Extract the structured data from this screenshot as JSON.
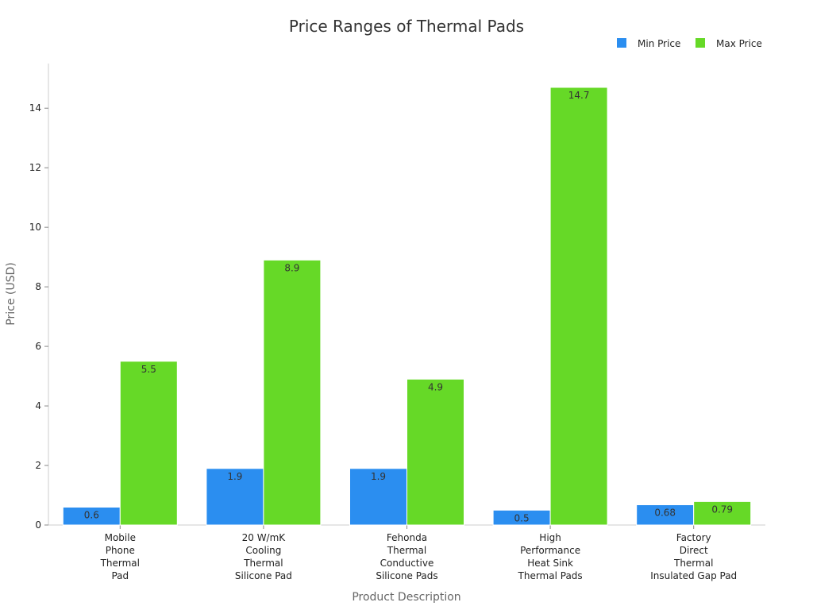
{
  "chart_data": {
    "type": "bar",
    "title": "Price Ranges of Thermal Pads",
    "xlabel": "Product Description",
    "ylabel": "Price (USD)",
    "categories": [
      [
        "Mobile",
        "Phone",
        "Thermal",
        "Pad"
      ],
      [
        "20 W/mK",
        "Cooling",
        "Thermal",
        "Silicone Pad"
      ],
      [
        "Fehonda",
        "Thermal",
        "Conductive",
        "Silicone Pads"
      ],
      [
        "High",
        "Performance",
        "Heat Sink",
        "Thermal Pads"
      ],
      [
        "Factory",
        "Direct",
        "Thermal",
        "Insulated Gap Pad"
      ]
    ],
    "series": [
      {
        "name": "Min Price",
        "color": "#2b8ef0",
        "values": [
          0.6,
          1.9,
          1.9,
          0.5,
          0.68
        ],
        "labels": [
          "0.6",
          "1.9",
          "1.9",
          "0.5",
          "0.68"
        ]
      },
      {
        "name": "Max Price",
        "color": "#66d927",
        "values": [
          5.5,
          8.9,
          4.9,
          14.7,
          0.79
        ],
        "labels": [
          "5.5",
          "8.9",
          "4.9",
          "14.7",
          "0.79"
        ]
      }
    ],
    "ylim": [
      0,
      15.5
    ],
    "yticks": [
      0,
      2,
      4,
      6,
      8,
      10,
      12,
      14
    ],
    "grid": false,
    "legend_position": "top-right"
  }
}
